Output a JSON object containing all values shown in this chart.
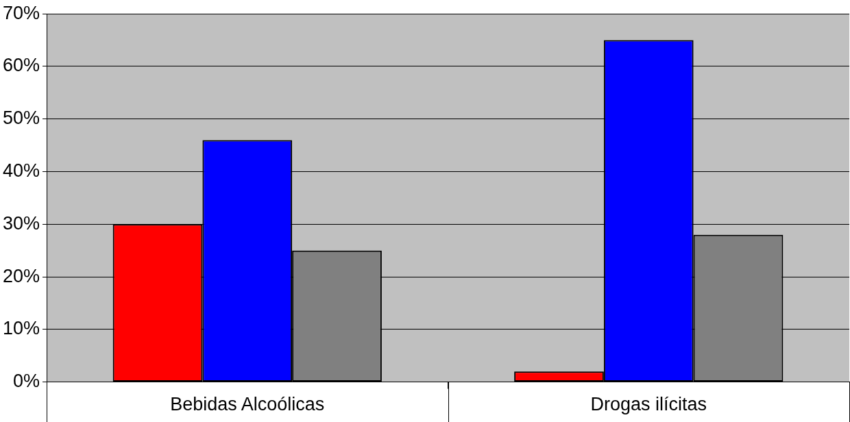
{
  "chart_data": {
    "type": "bar",
    "categories": [
      "Bebidas Alcoólicas",
      "Drogas ilícitas"
    ],
    "series": [
      {
        "color": "#ff0000",
        "values": [
          30,
          2
        ]
      },
      {
        "color": "#0000ff",
        "values": [
          46,
          65
        ]
      },
      {
        "color": "#808080",
        "values": [
          25,
          28
        ]
      }
    ],
    "ylim": [
      0,
      70
    ],
    "yticks": [
      {
        "value": 0,
        "label": "0%"
      },
      {
        "value": 10,
        "label": "10%"
      },
      {
        "value": 20,
        "label": "20%"
      },
      {
        "value": 30,
        "label": "30%"
      },
      {
        "value": 40,
        "label": "40%"
      },
      {
        "value": 50,
        "label": "50%"
      },
      {
        "value": 60,
        "label": "60%"
      },
      {
        "value": 70,
        "label": "70%"
      }
    ],
    "grid": "y",
    "legend": false
  }
}
